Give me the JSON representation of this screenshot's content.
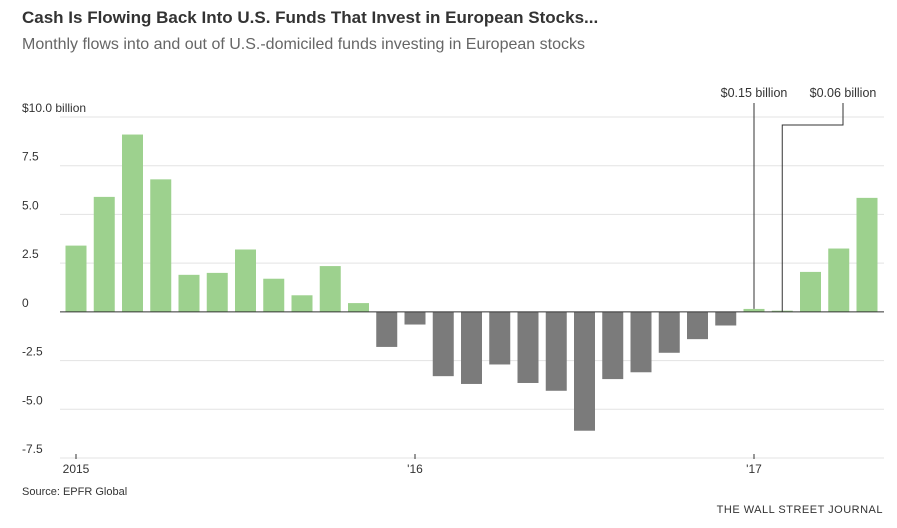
{
  "header": {
    "title": "Cash Is Flowing Back Into U.S. Funds That Invest in European Stocks...",
    "subtitle": "Monthly flows into and out of U.S.-domiciled funds investing in European stocks"
  },
  "footer": {
    "source": "Source: EPFR Global",
    "credit": "THE WALL STREET JOURNAL"
  },
  "colors": {
    "positive": "#9dd18e",
    "negative": "#7b7b7b",
    "grid": "#e3e3e3",
    "zero_line": "#333333",
    "annotation": "#333333"
  },
  "chart_data": {
    "type": "bar",
    "title": "Cash Is Flowing Back Into U.S. Funds That Invest in European Stocks...",
    "subtitle": "Monthly flows into and out of U.S.-domiciled funds investing in European stocks",
    "xlabel": "",
    "ylabel": "",
    "units": "billion USD",
    "ylim": [
      -7.5,
      10.0
    ],
    "y_ticks": [
      {
        "value": 10.0,
        "label": "$10.0 billion"
      },
      {
        "value": 7.5,
        "label": "7.5"
      },
      {
        "value": 5.0,
        "label": "5.0"
      },
      {
        "value": 2.5,
        "label": "2.5"
      },
      {
        "value": 0,
        "label": "0"
      },
      {
        "value": -2.5,
        "label": "-2.5"
      },
      {
        "value": -5.0,
        "label": "-5.0"
      },
      {
        "value": -7.5,
        "label": "-7.5"
      }
    ],
    "grid": true,
    "categories": [
      "2015-01",
      "2015-02",
      "2015-03",
      "2015-04",
      "2015-05",
      "2015-06",
      "2015-07",
      "2015-08",
      "2015-09",
      "2015-10",
      "2015-11",
      "2015-12",
      "2016-01",
      "2016-02",
      "2016-03",
      "2016-04",
      "2016-05",
      "2016-06",
      "2016-07",
      "2016-08",
      "2016-09",
      "2016-10",
      "2016-11",
      "2016-12",
      "2017-01",
      "2017-02",
      "2017-03",
      "2017-04",
      "2017-05"
    ],
    "values": [
      3.4,
      5.9,
      9.1,
      6.8,
      1.9,
      2.0,
      3.2,
      1.7,
      0.85,
      2.35,
      0.45,
      -1.8,
      -0.65,
      -3.3,
      -3.7,
      -2.7,
      -3.65,
      -4.05,
      -6.1,
      -3.45,
      -3.1,
      -2.1,
      -1.4,
      -0.7,
      0.15,
      0.06,
      2.05,
      3.25,
      5.85
    ],
    "x_ticks": [
      {
        "index": 0,
        "label": "2015"
      },
      {
        "index": 12,
        "label": "'16"
      },
      {
        "index": 24,
        "label": "'17"
      }
    ],
    "annotations": [
      {
        "index": 24,
        "label": "$0.15 billion"
      },
      {
        "index": 25,
        "label": "$0.06 billion"
      }
    ]
  }
}
